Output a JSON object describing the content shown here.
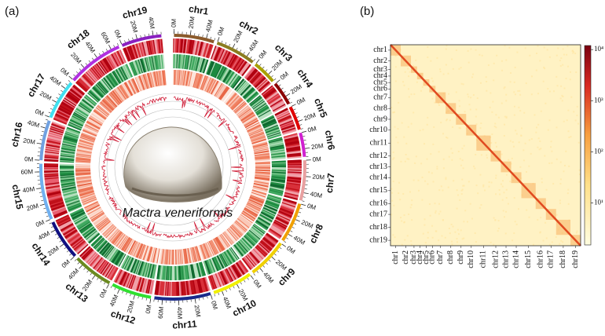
{
  "panel_a": {
    "label": "(a)",
    "species": "Mactra veneriformis",
    "chromosomes": [
      {
        "name": "chr1",
        "color": "#8b5a2b",
        "ticks": [
          "0M",
          "20M",
          "40M"
        ]
      },
      {
        "name": "chr2",
        "color": "#8b7d20",
        "ticks": [
          "0M",
          "20M",
          "40M"
        ]
      },
      {
        "name": "chr3",
        "color": "#a8a000",
        "ticks": [
          "0M",
          "20M"
        ]
      },
      {
        "name": "chr4",
        "color": "#8b0000",
        "ticks": [
          "0M",
          "20M"
        ]
      },
      {
        "name": "chr5",
        "color": "#e00000",
        "ticks": [
          "0M",
          "20M"
        ]
      },
      {
        "name": "chr6",
        "color": "#d020d0",
        "ticks": [
          "0M",
          "20M"
        ]
      },
      {
        "name": "chr7",
        "color": "#e8a0a0",
        "ticks": [
          "0M",
          "20M",
          "40M"
        ]
      },
      {
        "name": "chr8",
        "color": "#f0a000",
        "ticks": [
          "0M",
          "20M",
          "40M"
        ]
      },
      {
        "name": "chr9",
        "color": "#f0d000",
        "ticks": [
          "0M",
          "20M",
          "40M"
        ]
      },
      {
        "name": "chr10",
        "color": "#f0f000",
        "ticks": [
          "0M",
          "20M",
          "40M"
        ]
      },
      {
        "name": "chr11",
        "color": "#1a2a8a",
        "ticks": [
          "0M",
          "20M",
          "40M",
          "60M"
        ]
      },
      {
        "name": "chr12",
        "color": "#30e030",
        "ticks": [
          "0M",
          "20M",
          "40M"
        ]
      },
      {
        "name": "chr13",
        "color": "#6a8a20",
        "ticks": [
          "0M",
          "20M",
          "40M"
        ]
      },
      {
        "name": "chr14",
        "color": "#101080",
        "ticks": [
          "0M",
          "20M",
          "40M"
        ]
      },
      {
        "name": "chr15",
        "color": "#70b0f0",
        "ticks": [
          "0M",
          "20M",
          "40M",
          "60M"
        ]
      },
      {
        "name": "chr16",
        "color": "#70a0e0",
        "ticks": [
          "0M",
          "20M",
          "40M"
        ]
      },
      {
        "name": "chr17",
        "color": "#40e0f0",
        "ticks": [
          "0M",
          "20M",
          "40M"
        ]
      },
      {
        "name": "chr18",
        "color": "#b030e0",
        "ticks": [
          "0M",
          "20M",
          "40M",
          "60M"
        ]
      },
      {
        "name": "chr19",
        "color": "#8a20c0",
        "ticks": [
          "0M",
          "20M",
          "40M"
        ]
      }
    ]
  },
  "panel_b": {
    "label": "(b)",
    "labels": [
      "chr1",
      "chr2",
      "chr3",
      "chr4",
      "chr5",
      "chr6",
      "chr7",
      "chr8",
      "chr9",
      "chr10",
      "chr11",
      "chr12",
      "chr13",
      "chr14",
      "chr15",
      "chr16",
      "chr17",
      "chr18",
      "chr19"
    ],
    "colorbar": {
      "log": true,
      "clim": [
        1.5,
        12000
      ],
      "ticks": [
        {
          "value": 10,
          "label": "10¹"
        },
        {
          "value": 100,
          "label": "10²"
        },
        {
          "value": 1000,
          "label": "10³"
        },
        {
          "value": 10000,
          "label": "10⁴"
        }
      ]
    }
  }
}
